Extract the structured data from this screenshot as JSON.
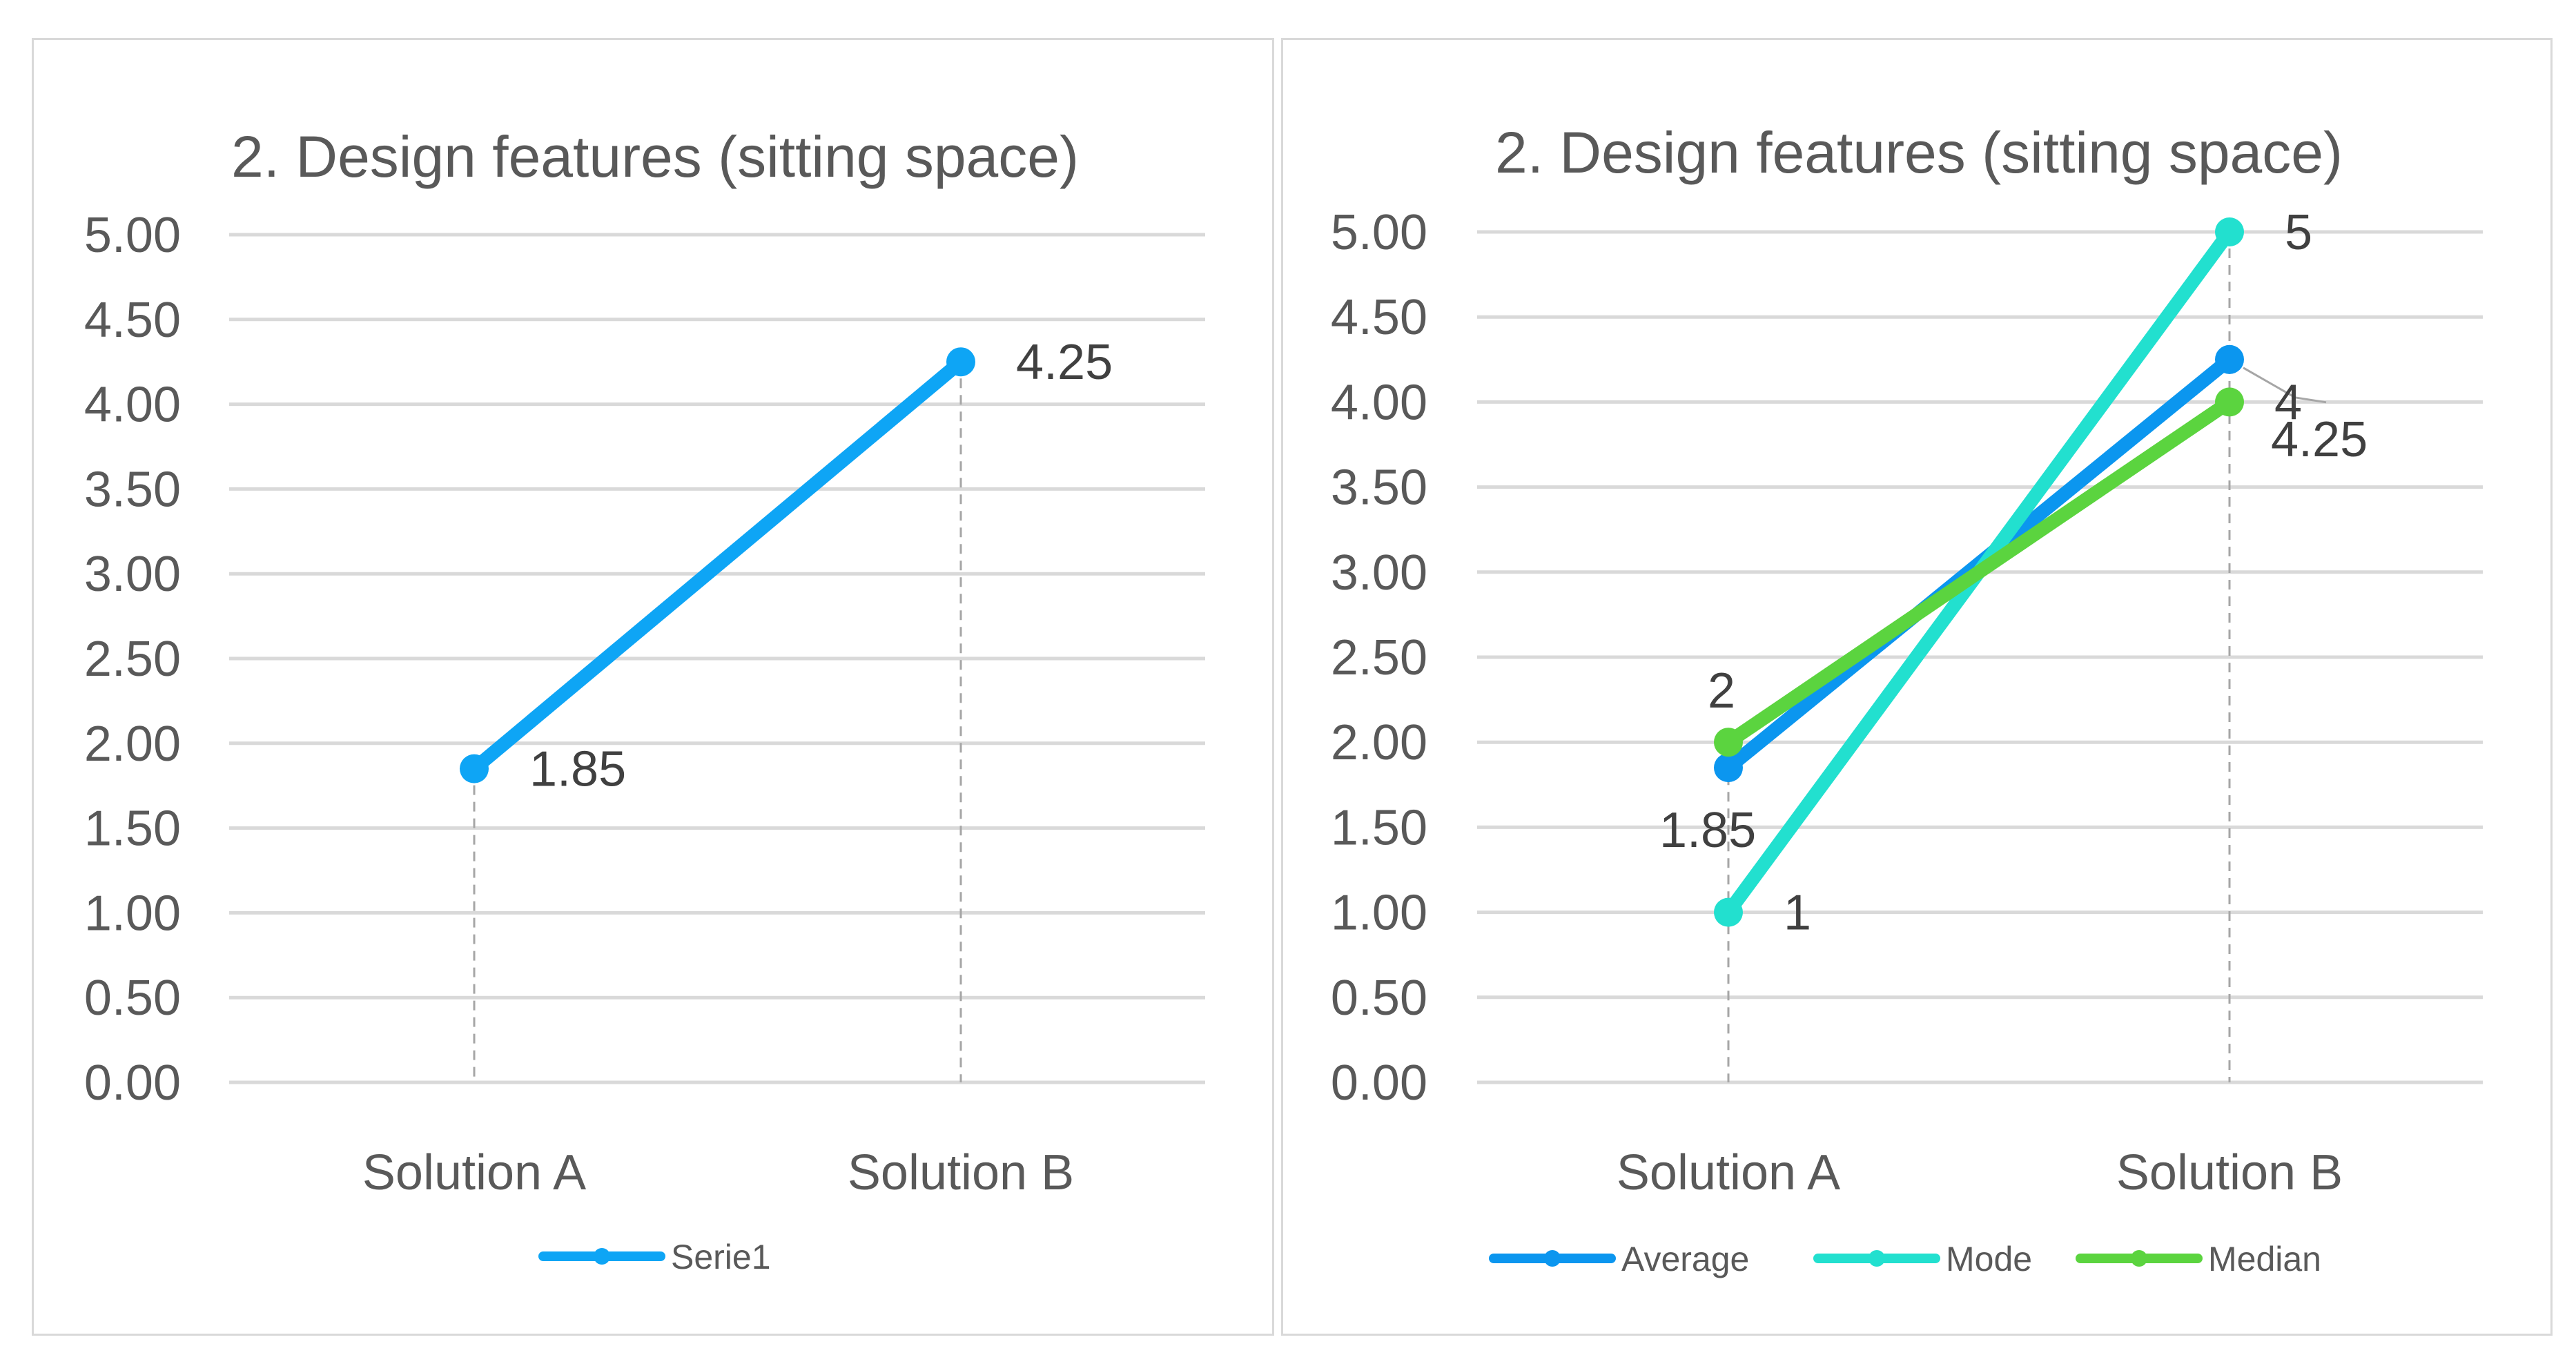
{
  "chart_data": [
    {
      "type": "line",
      "title": "2. Design features (sitting space)",
      "categories": [
        "Solution A",
        "Solution B"
      ],
      "ylim": [
        0,
        5
      ],
      "y_ticks": [
        "0.00",
        "0.50",
        "1.00",
        "1.50",
        "2.00",
        "2.50",
        "3.00",
        "3.50",
        "4.00",
        "4.50",
        "5.00"
      ],
      "grid": true,
      "drop_lines": true,
      "legend_position": "bottom",
      "series": [
        {
          "name": "Serie1",
          "values": [
            1.85,
            4.25
          ],
          "labels": [
            "1.85",
            "4.25"
          ],
          "color": "#0ea5f5"
        }
      ]
    },
    {
      "type": "line",
      "title": "2. Design features (sitting space)",
      "categories": [
        "Solution A",
        "Solution B"
      ],
      "ylim": [
        0,
        5
      ],
      "y_ticks": [
        "0.00",
        "0.50",
        "1.00",
        "1.50",
        "2.00",
        "2.50",
        "3.00",
        "3.50",
        "4.00",
        "4.50",
        "5.00"
      ],
      "grid": true,
      "drop_lines": true,
      "legend_position": "bottom",
      "series": [
        {
          "name": "Average",
          "values": [
            1.85,
            4.25
          ],
          "labels": [
            "1.85",
            "4.25"
          ],
          "color": "#0b96ef"
        },
        {
          "name": "Mode",
          "values": [
            1,
            5
          ],
          "labels": [
            "1",
            "5"
          ],
          "color": "#22e0cf"
        },
        {
          "name": "Median",
          "values": [
            2,
            4
          ],
          "labels": [
            "2",
            "4"
          ],
          "color": "#5bd43f"
        }
      ]
    }
  ]
}
